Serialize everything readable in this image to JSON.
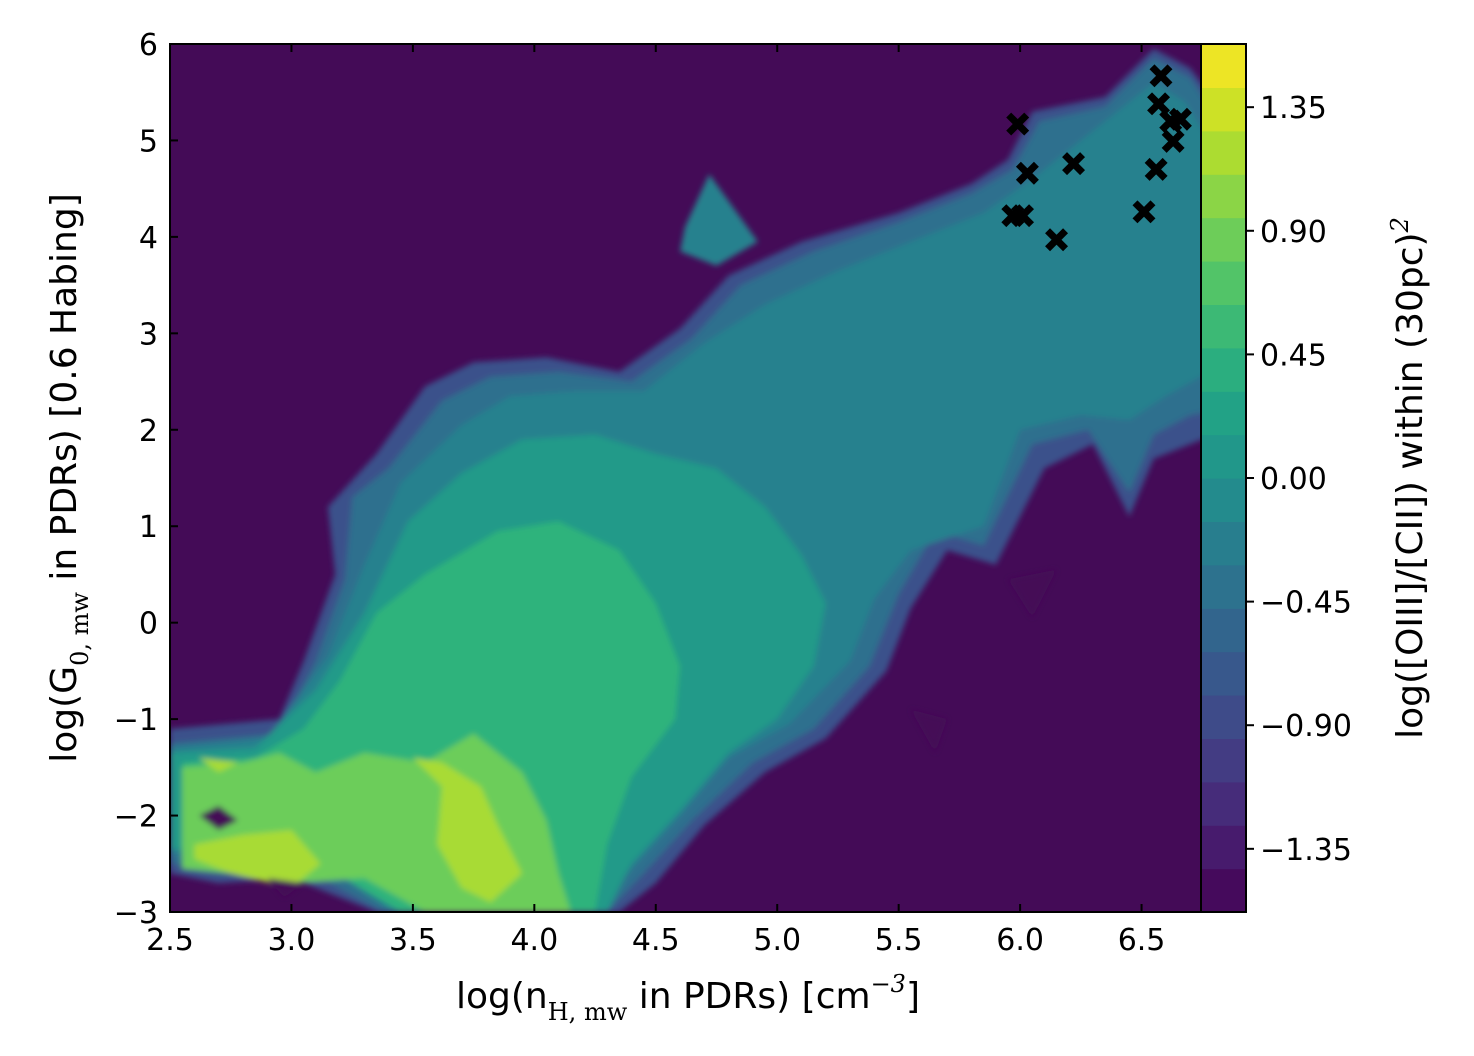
{
  "chart_data": {
    "type": "heatmap",
    "subtype": "filled-contour",
    "title": "",
    "xlabel": {
      "prefix": "log(n",
      "subscript": "H, mw",
      "suffix": " in PDRs) [cm",
      "superscript": "−3",
      "end": "]"
    },
    "ylabel": {
      "prefix": "log(G",
      "subscript": "0, mw",
      "suffix": " in PDRs) [0.6 Habing]"
    },
    "colorbar_label": {
      "text": "log([OIII]/[CII]) within (30pc)",
      "superscript": "2"
    },
    "xlim": [
      2.5,
      6.93
    ],
    "ylim": [
      -3,
      6
    ],
    "xticks": [
      "2.5",
      "3.0",
      "3.5",
      "4.0",
      "4.5",
      "5.0",
      "5.5",
      "6.0",
      "6.5"
    ],
    "yticks": [
      "−3",
      "−2",
      "−1",
      "0",
      "1",
      "2",
      "3",
      "4",
      "5",
      "6"
    ],
    "colorbar_range": [
      -1.58,
      1.58
    ],
    "colorbar_ticks": [
      "1.35",
      "0.90",
      "0.45",
      "0.00",
      "−0.45",
      "−0.90",
      "−1.35"
    ],
    "colormap": "viridis",
    "grid": false,
    "levels": [
      {
        "level": -1.4,
        "color": "#440b57"
      },
      {
        "level": -0.9,
        "color": "#3b518b"
      },
      {
        "level": -0.45,
        "color": "#2d708e"
      },
      {
        "level": 0.0,
        "color": "#26818e"
      },
      {
        "level": 0.25,
        "color": "#229a89"
      },
      {
        "level": 0.55,
        "color": "#2eb37c"
      },
      {
        "level": 0.9,
        "color": "#6ccd5a"
      },
      {
        "level": 1.15,
        "color": "#a8db34"
      }
    ],
    "regions": [
      {
        "name": "blue-envelope",
        "level": -0.9,
        "points": [
          [
            2.5,
            -1.1
          ],
          [
            2.95,
            -1.0
          ],
          [
            3.05,
            -0.4
          ],
          [
            3.18,
            0.5
          ],
          [
            3.15,
            1.2
          ],
          [
            3.35,
            1.75
          ],
          [
            3.55,
            2.45
          ],
          [
            3.75,
            2.7
          ],
          [
            4.05,
            2.75
          ],
          [
            4.35,
            2.6
          ],
          [
            4.6,
            3.05
          ],
          [
            4.8,
            3.6
          ],
          [
            5.1,
            3.95
          ],
          [
            5.5,
            4.25
          ],
          [
            5.8,
            4.55
          ],
          [
            5.95,
            4.8
          ],
          [
            6.05,
            5.3
          ],
          [
            6.35,
            5.45
          ],
          [
            6.55,
            5.95
          ],
          [
            6.7,
            5.75
          ],
          [
            6.93,
            5.0
          ],
          [
            6.93,
            1.9
          ],
          [
            6.75,
            1.9
          ],
          [
            6.55,
            1.7
          ],
          [
            6.45,
            1.1
          ],
          [
            6.3,
            1.85
          ],
          [
            6.1,
            1.6
          ],
          [
            5.9,
            0.6
          ],
          [
            5.7,
            0.75
          ],
          [
            5.55,
            0.15
          ],
          [
            5.45,
            -0.5
          ],
          [
            5.2,
            -1.2
          ],
          [
            4.95,
            -1.55
          ],
          [
            4.7,
            -2.1
          ],
          [
            4.5,
            -2.7
          ],
          [
            4.35,
            -3.0
          ],
          [
            3.35,
            -3.0
          ],
          [
            3.0,
            -2.65
          ],
          [
            2.7,
            -2.7
          ],
          [
            2.5,
            -2.6
          ]
        ]
      },
      {
        "name": "teal-envelope",
        "level": -0.45,
        "points": [
          [
            2.5,
            -1.25
          ],
          [
            2.95,
            -1.15
          ],
          [
            3.1,
            -0.4
          ],
          [
            3.22,
            0.45
          ],
          [
            3.25,
            1.3
          ],
          [
            3.4,
            1.6
          ],
          [
            3.62,
            2.3
          ],
          [
            3.82,
            2.55
          ],
          [
            4.1,
            2.6
          ],
          [
            4.4,
            2.5
          ],
          [
            4.65,
            2.95
          ],
          [
            4.85,
            3.5
          ],
          [
            5.15,
            3.85
          ],
          [
            5.5,
            4.15
          ],
          [
            5.8,
            4.45
          ],
          [
            5.97,
            4.7
          ],
          [
            6.08,
            5.2
          ],
          [
            6.35,
            5.35
          ],
          [
            6.55,
            5.85
          ],
          [
            6.7,
            5.65
          ],
          [
            6.9,
            4.9
          ],
          [
            6.9,
            2.25
          ],
          [
            6.7,
            2.15
          ],
          [
            6.55,
            1.95
          ],
          [
            6.45,
            1.35
          ],
          [
            6.28,
            2.0
          ],
          [
            6.05,
            1.85
          ],
          [
            5.85,
            0.8
          ],
          [
            5.65,
            0.95
          ],
          [
            5.5,
            0.3
          ],
          [
            5.38,
            -0.45
          ],
          [
            5.15,
            -1.1
          ],
          [
            4.9,
            -1.45
          ],
          [
            4.65,
            -2.05
          ],
          [
            4.45,
            -2.6
          ],
          [
            4.3,
            -3.0
          ],
          [
            3.38,
            -3.0
          ],
          [
            3.05,
            -2.55
          ],
          [
            2.75,
            -2.55
          ],
          [
            2.5,
            -2.5
          ]
        ]
      },
      {
        "name": "main-ridge",
        "level": 0.0,
        "points": [
          [
            2.5,
            -1.3
          ],
          [
            2.9,
            -1.2
          ],
          [
            3.15,
            -0.35
          ],
          [
            3.3,
            0.6
          ],
          [
            3.45,
            1.45
          ],
          [
            3.7,
            2.05
          ],
          [
            3.9,
            2.35
          ],
          [
            4.15,
            2.4
          ],
          [
            4.45,
            2.4
          ],
          [
            4.7,
            2.9
          ],
          [
            4.95,
            3.3
          ],
          [
            5.25,
            3.65
          ],
          [
            5.55,
            3.95
          ],
          [
            5.85,
            4.25
          ],
          [
            6.05,
            4.6
          ],
          [
            6.3,
            5.1
          ],
          [
            6.55,
            5.6
          ],
          [
            6.68,
            5.4
          ],
          [
            6.85,
            4.7
          ],
          [
            6.85,
            2.7
          ],
          [
            6.6,
            2.35
          ],
          [
            6.45,
            2.1
          ],
          [
            6.25,
            2.15
          ],
          [
            6.0,
            2.0
          ],
          [
            5.85,
            1.0
          ],
          [
            5.55,
            0.75
          ],
          [
            5.4,
            0.25
          ],
          [
            5.3,
            -0.4
          ],
          [
            5.05,
            -1.05
          ],
          [
            4.8,
            -1.4
          ],
          [
            4.6,
            -2.0
          ],
          [
            4.4,
            -2.55
          ],
          [
            4.25,
            -3.0
          ],
          [
            3.42,
            -3.0
          ],
          [
            3.1,
            -2.45
          ],
          [
            2.8,
            -2.4
          ],
          [
            2.5,
            -2.4
          ]
        ]
      },
      {
        "name": "upper-bump",
        "level": 0.0,
        "points": [
          [
            4.62,
            4.1
          ],
          [
            4.72,
            4.65
          ],
          [
            4.82,
            4.3
          ],
          [
            4.92,
            3.95
          ],
          [
            4.75,
            3.7
          ],
          [
            4.6,
            3.85
          ]
        ]
      },
      {
        "name": "green-core",
        "level": 0.25,
        "points": [
          [
            2.5,
            -1.35
          ],
          [
            2.85,
            -1.3
          ],
          [
            3.1,
            -0.7
          ],
          [
            3.3,
            0.1
          ],
          [
            3.48,
            1.05
          ],
          [
            3.7,
            1.55
          ],
          [
            3.95,
            1.9
          ],
          [
            4.25,
            1.95
          ],
          [
            4.5,
            1.75
          ],
          [
            4.75,
            1.6
          ],
          [
            4.95,
            1.2
          ],
          [
            5.1,
            0.7
          ],
          [
            5.2,
            0.2
          ],
          [
            5.15,
            -0.45
          ],
          [
            5.0,
            -1.0
          ],
          [
            4.8,
            -1.35
          ],
          [
            4.6,
            -1.95
          ],
          [
            4.4,
            -2.5
          ],
          [
            4.3,
            -3.0
          ],
          [
            3.45,
            -3.0
          ],
          [
            3.15,
            -2.4
          ],
          [
            2.8,
            -2.3
          ],
          [
            2.5,
            -2.35
          ]
        ]
      },
      {
        "name": "green-inner",
        "level": 0.55,
        "points": [
          [
            2.55,
            -1.45
          ],
          [
            2.85,
            -1.4
          ],
          [
            3.05,
            -1.1
          ],
          [
            3.2,
            -0.6
          ],
          [
            3.35,
            0.1
          ],
          [
            3.55,
            0.5
          ],
          [
            3.85,
            0.95
          ],
          [
            4.1,
            1.05
          ],
          [
            4.35,
            0.75
          ],
          [
            4.5,
            0.2
          ],
          [
            4.6,
            -0.45
          ],
          [
            4.58,
            -1.0
          ],
          [
            4.4,
            -1.6
          ],
          [
            4.3,
            -2.3
          ],
          [
            4.25,
            -3.0
          ],
          [
            3.45,
            -3.0
          ],
          [
            3.15,
            -2.55
          ],
          [
            2.8,
            -2.5
          ],
          [
            2.55,
            -2.45
          ]
        ]
      },
      {
        "name": "light-green",
        "level": 0.9,
        "points": [
          [
            2.55,
            -1.5
          ],
          [
            2.8,
            -1.45
          ],
          [
            2.95,
            -1.35
          ],
          [
            3.1,
            -1.55
          ],
          [
            3.3,
            -1.35
          ],
          [
            3.55,
            -1.45
          ],
          [
            3.75,
            -1.15
          ],
          [
            3.95,
            -1.55
          ],
          [
            4.05,
            -2.05
          ],
          [
            4.1,
            -2.6
          ],
          [
            4.15,
            -3.0
          ],
          [
            3.55,
            -3.0
          ],
          [
            3.3,
            -2.65
          ],
          [
            3.0,
            -2.7
          ],
          [
            2.75,
            -2.6
          ],
          [
            2.55,
            -2.55
          ]
        ]
      },
      {
        "name": "yellow-green-left",
        "level": 1.15,
        "points": [
          [
            2.6,
            -2.3
          ],
          [
            2.8,
            -2.2
          ],
          [
            3.0,
            -2.15
          ],
          [
            3.12,
            -2.5
          ],
          [
            3.0,
            -2.75
          ],
          [
            2.75,
            -2.6
          ],
          [
            2.6,
            -2.45
          ]
        ]
      },
      {
        "name": "yellow-green-mid",
        "level": 1.15,
        "points": [
          [
            3.5,
            -1.4
          ],
          [
            3.62,
            -1.7
          ],
          [
            3.6,
            -2.3
          ],
          [
            3.7,
            -2.75
          ],
          [
            3.82,
            -2.9
          ],
          [
            3.95,
            -2.6
          ],
          [
            3.85,
            -2.1
          ],
          [
            3.78,
            -1.7
          ],
          [
            3.62,
            -1.45
          ]
        ]
      },
      {
        "name": "yellow-green-top",
        "level": 1.15,
        "points": [
          [
            2.62,
            -1.4
          ],
          [
            2.7,
            -1.55
          ],
          [
            2.78,
            -1.45
          ]
        ]
      }
    ],
    "holes": [
      {
        "points": [
          [
            2.62,
            -2.0
          ],
          [
            2.7,
            -2.15
          ],
          [
            2.78,
            -2.05
          ],
          [
            2.7,
            -1.9
          ]
        ]
      },
      {
        "points": [
          [
            2.9,
            -2.65
          ],
          [
            2.97,
            -2.85
          ],
          [
            3.05,
            -2.7
          ]
        ]
      },
      {
        "points": [
          [
            5.95,
            0.45
          ],
          [
            6.05,
            0.05
          ],
          [
            6.15,
            0.55
          ]
        ]
      },
      {
        "points": [
          [
            5.55,
            -0.9
          ],
          [
            5.7,
            -1.0
          ],
          [
            5.65,
            -1.35
          ]
        ]
      }
    ],
    "markers": {
      "symbol": "x",
      "color": "#000000",
      "points": [
        [
          5.97,
          4.22
        ],
        [
          6.01,
          4.22
        ],
        [
          5.99,
          5.17
        ],
        [
          6.03,
          4.66
        ],
        [
          6.15,
          3.97
        ],
        [
          6.22,
          4.76
        ],
        [
          6.51,
          4.26
        ],
        [
          6.56,
          4.7
        ],
        [
          6.57,
          5.38
        ],
        [
          6.58,
          5.67
        ],
        [
          6.62,
          5.2
        ],
        [
          6.63,
          4.99
        ],
        [
          6.66,
          5.22
        ]
      ]
    }
  }
}
